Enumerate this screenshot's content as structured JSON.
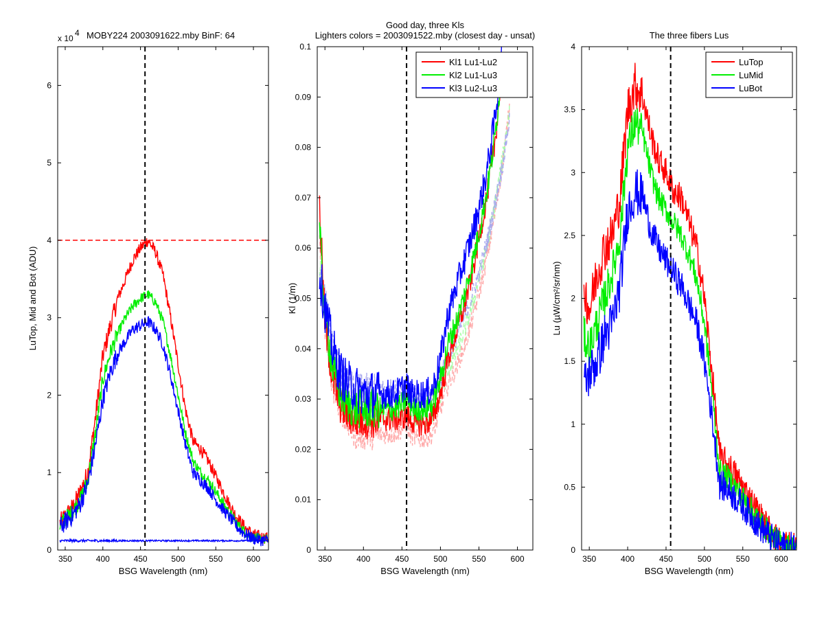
{
  "chart_data": [
    {
      "type": "line",
      "title": "MOBY224  2003091622.mby BinF: 64",
      "exponent_label": "x 10",
      "exponent_power": "4",
      "xlabel": "BSG Wavelength (nm)",
      "ylabel": "LuTop, Mid and Bot (ADU)",
      "xlim": [
        340,
        620
      ],
      "ylim": [
        0,
        6.5
      ],
      "xticks": [
        350,
        400,
        450,
        500,
        550,
        600
      ],
      "yticks": [
        0,
        1,
        2,
        3,
        4,
        5,
        6
      ],
      "vline": {
        "x": 456,
        "color": "#000000",
        "style": "dashed"
      },
      "hline": {
        "y": 4,
        "color": "#ff0000",
        "style": "dashed"
      },
      "series": [
        {
          "color": "#ff0000",
          "noise": 0.08,
          "x": [
            343,
            360,
            370,
            380,
            390,
            400,
            410,
            420,
            430,
            440,
            450,
            460,
            470,
            480,
            490,
            500,
            510,
            520,
            530,
            540,
            550,
            560,
            570,
            580,
            590,
            600,
            610,
            620
          ],
          "y": [
            0.35,
            0.55,
            0.75,
            1.0,
            1.7,
            2.5,
            2.9,
            3.25,
            3.5,
            3.75,
            3.9,
            4.0,
            3.85,
            3.55,
            3.0,
            2.4,
            1.8,
            1.4,
            1.3,
            1.15,
            0.95,
            0.75,
            0.55,
            0.4,
            0.28,
            0.2,
            0.17,
            0.15
          ]
        },
        {
          "color": "#00ee00",
          "noise": 0.07,
          "x": [
            343,
            360,
            370,
            380,
            390,
            400,
            410,
            420,
            430,
            440,
            450,
            460,
            470,
            480,
            490,
            500,
            510,
            520,
            530,
            540,
            550,
            560,
            570,
            580,
            590,
            600,
            610,
            620
          ],
          "y": [
            0.33,
            0.5,
            0.65,
            0.9,
            1.5,
            2.2,
            2.55,
            2.8,
            3.0,
            3.15,
            3.25,
            3.3,
            3.2,
            2.95,
            2.5,
            2.0,
            1.5,
            1.15,
            1.0,
            0.9,
            0.75,
            0.6,
            0.45,
            0.32,
            0.22,
            0.16,
            0.14,
            0.13
          ]
        },
        {
          "color": "#0000ff",
          "noise": 0.08,
          "x": [
            343,
            360,
            370,
            380,
            390,
            400,
            410,
            420,
            430,
            440,
            450,
            460,
            470,
            480,
            490,
            500,
            510,
            520,
            530,
            540,
            550,
            560,
            570,
            580,
            590,
            600,
            610,
            620
          ],
          "y": [
            0.3,
            0.45,
            0.6,
            0.85,
            1.35,
            1.95,
            2.3,
            2.55,
            2.7,
            2.85,
            2.9,
            2.95,
            2.85,
            2.65,
            2.25,
            1.8,
            1.35,
            1.0,
            0.9,
            0.8,
            0.65,
            0.52,
            0.4,
            0.28,
            0.2,
            0.15,
            0.13,
            0.12
          ]
        },
        {
          "color": "#0000ff",
          "noise": 0.01,
          "x": [
            343,
            620
          ],
          "y": [
            0.12,
            0.12
          ]
        }
      ]
    },
    {
      "type": "line",
      "title": "Good day, three Kls",
      "subtitle": "Lighters colors = 2003091522.mby (closest day - unsat)",
      "xlabel": "BSG Wavelength (nm)",
      "ylabel": "Kl (1/m)",
      "xlim": [
        340,
        620
      ],
      "ylim": [
        0,
        0.1
      ],
      "xticks": [
        350,
        400,
        450,
        500,
        550,
        600
      ],
      "yticks": [
        0,
        0.01,
        0.02,
        0.03,
        0.04,
        0.05,
        0.06,
        0.07,
        0.08,
        0.09,
        0.1
      ],
      "vline": {
        "x": 456,
        "color": "#000000",
        "style": "dashed"
      },
      "legend": {
        "location": "top-right",
        "entries": [
          "Kl1 Lu1-Lu2",
          "Kl2 Lu1-Lu3",
          "Kl3 Lu2-Lu3"
        ],
        "colors": [
          "#ff0000",
          "#00ee00",
          "#0000ff"
        ]
      },
      "series": [
        {
          "name": "Kl1 Lu1-Lu2",
          "color": "#ffaaaa",
          "dashed": true,
          "noise": 0.002,
          "x": [
            343,
            350,
            360,
            370,
            380,
            390,
            400,
            410,
            420,
            430,
            440,
            450,
            456,
            460,
            470,
            480,
            490,
            500,
            510,
            520,
            530,
            540,
            550,
            560,
            570,
            580,
            590
          ],
          "y": [
            0.06,
            0.045,
            0.033,
            0.028,
            0.025,
            0.023,
            0.023,
            0.023,
            0.023,
            0.023,
            0.023,
            0.024,
            0.025,
            0.023,
            0.022,
            0.022,
            0.023,
            0.028,
            0.033,
            0.036,
            0.04,
            0.045,
            0.051,
            0.058,
            0.066,
            0.076,
            0.088
          ]
        },
        {
          "name": "Kl2 Lu1-Lu3",
          "color": "#aaffaa",
          "dashed": true,
          "noise": 0.002,
          "x": [
            343,
            350,
            360,
            370,
            380,
            390,
            400,
            410,
            420,
            430,
            440,
            450,
            456,
            460,
            470,
            480,
            490,
            500,
            510,
            520,
            530,
            540,
            550,
            560,
            570,
            580,
            590
          ],
          "y": [
            0.058,
            0.047,
            0.036,
            0.031,
            0.028,
            0.027,
            0.027,
            0.027,
            0.027,
            0.027,
            0.027,
            0.027,
            0.028,
            0.027,
            0.026,
            0.026,
            0.027,
            0.031,
            0.036,
            0.039,
            0.043,
            0.048,
            0.054,
            0.06,
            0.068,
            0.077,
            0.088
          ]
        },
        {
          "name": "Kl3 Lu2-Lu3",
          "color": "#aaaaee",
          "dashed": true,
          "noise": 0.002,
          "x": [
            343,
            350,
            360,
            370,
            380,
            390,
            400,
            410,
            420,
            430,
            440,
            450,
            456,
            460,
            470,
            480,
            490,
            500,
            510,
            520,
            530,
            540,
            550,
            560,
            570,
            580,
            590
          ],
          "y": [
            0.056,
            0.05,
            0.04,
            0.035,
            0.033,
            0.032,
            0.032,
            0.032,
            0.032,
            0.032,
            0.032,
            0.032,
            0.032,
            0.031,
            0.03,
            0.03,
            0.031,
            0.034,
            0.039,
            0.042,
            0.046,
            0.05,
            0.055,
            0.061,
            0.068,
            0.076,
            0.086
          ]
        },
        {
          "name": "Kl1 Lu1-Lu2",
          "color": "#ff0000",
          "noise": 0.0025,
          "x": [
            343,
            350,
            360,
            370,
            380,
            390,
            400,
            410,
            420,
            430,
            440,
            450,
            456,
            460,
            470,
            480,
            490,
            500,
            510,
            520,
            530,
            540,
            550,
            560,
            570,
            580
          ],
          "y": [
            0.068,
            0.045,
            0.034,
            0.029,
            0.027,
            0.026,
            0.026,
            0.026,
            0.026,
            0.026,
            0.026,
            0.026,
            0.027,
            0.026,
            0.025,
            0.025,
            0.026,
            0.031,
            0.038,
            0.043,
            0.048,
            0.054,
            0.062,
            0.07,
            0.08,
            0.095
          ]
        },
        {
          "name": "Kl2 Lu1-Lu3",
          "color": "#00ee00",
          "noise": 0.0025,
          "x": [
            343,
            350,
            360,
            370,
            380,
            390,
            400,
            410,
            420,
            430,
            440,
            450,
            456,
            460,
            470,
            480,
            490,
            500,
            510,
            520,
            530,
            540,
            550,
            560,
            570,
            580
          ],
          "y": [
            0.063,
            0.047,
            0.036,
            0.031,
            0.029,
            0.028,
            0.028,
            0.028,
            0.028,
            0.028,
            0.028,
            0.029,
            0.03,
            0.029,
            0.028,
            0.028,
            0.029,
            0.034,
            0.041,
            0.045,
            0.05,
            0.056,
            0.063,
            0.071,
            0.081,
            0.096
          ]
        },
        {
          "name": "Kl3 Lu2-Lu3",
          "color": "#0000ff",
          "noise": 0.003,
          "x": [
            343,
            350,
            360,
            370,
            380,
            390,
            400,
            410,
            420,
            430,
            440,
            450,
            456,
            460,
            470,
            480,
            490,
            500,
            510,
            520,
            530,
            540,
            550,
            560,
            570,
            580
          ],
          "y": [
            0.055,
            0.048,
            0.04,
            0.035,
            0.033,
            0.032,
            0.031,
            0.031,
            0.031,
            0.031,
            0.031,
            0.032,
            0.033,
            0.031,
            0.031,
            0.031,
            0.032,
            0.038,
            0.047,
            0.052,
            0.057,
            0.062,
            0.068,
            0.075,
            0.085,
            0.098
          ]
        }
      ]
    },
    {
      "type": "line",
      "title": "The three fibers Lus",
      "xlabel": "BSG Wavelength (nm)",
      "ylabel": "Lu (µW/cm²/sr/nm)",
      "xlim": [
        340,
        620
      ],
      "ylim": [
        0,
        4
      ],
      "xticks": [
        350,
        400,
        450,
        500,
        550,
        600
      ],
      "yticks": [
        0,
        0.5,
        1,
        1.5,
        2,
        2.5,
        3,
        3.5,
        4
      ],
      "vline": {
        "x": 456,
        "color": "#000000",
        "style": "dashed"
      },
      "legend": {
        "location": "top-right",
        "entries": [
          "LuTop",
          "LuMid",
          "LuBot"
        ],
        "colors": [
          "#ff0000",
          "#00ee00",
          "#0000ff"
        ]
      },
      "series": [
        {
          "name": "LuTop",
          "color": "#ff0000",
          "noise": 0.12,
          "x": [
            343,
            350,
            360,
            370,
            380,
            390,
            400,
            410,
            420,
            430,
            440,
            450,
            460,
            470,
            480,
            490,
            500,
            510,
            520,
            530,
            540,
            550,
            560,
            570,
            580,
            590,
            600,
            610,
            620
          ],
          "y": [
            2.1,
            1.9,
            2.2,
            2.4,
            2.5,
            2.8,
            3.5,
            3.7,
            3.6,
            3.3,
            3.1,
            3.0,
            2.85,
            2.8,
            2.6,
            2.4,
            2.0,
            1.4,
            0.75,
            0.68,
            0.6,
            0.5,
            0.4,
            0.3,
            0.2,
            0.12,
            0.06,
            0.04,
            0.03
          ]
        },
        {
          "name": "LuMid",
          "color": "#00ee00",
          "noise": 0.1,
          "x": [
            343,
            350,
            360,
            370,
            380,
            390,
            400,
            410,
            420,
            430,
            440,
            450,
            460,
            470,
            480,
            490,
            500,
            510,
            520,
            530,
            540,
            550,
            560,
            570,
            580,
            590,
            600,
            610,
            620
          ],
          "y": [
            1.7,
            1.6,
            1.8,
            2.0,
            2.2,
            2.5,
            3.2,
            3.4,
            3.3,
            3.0,
            2.8,
            2.7,
            2.6,
            2.5,
            2.35,
            2.15,
            1.8,
            1.25,
            0.62,
            0.58,
            0.5,
            0.42,
            0.33,
            0.25,
            0.17,
            0.1,
            0.05,
            0.03,
            0.03
          ]
        },
        {
          "name": "LuBot",
          "color": "#0000ff",
          "noise": 0.12,
          "x": [
            343,
            350,
            360,
            370,
            380,
            390,
            400,
            410,
            420,
            430,
            440,
            450,
            460,
            470,
            480,
            490,
            500,
            510,
            520,
            530,
            540,
            550,
            560,
            570,
            580,
            590,
            600,
            610,
            620
          ],
          "y": [
            1.3,
            1.4,
            1.5,
            1.7,
            1.8,
            2.1,
            2.7,
            2.85,
            2.8,
            2.55,
            2.4,
            2.3,
            2.2,
            2.1,
            1.95,
            1.8,
            1.5,
            1.05,
            0.52,
            0.48,
            0.42,
            0.35,
            0.28,
            0.2,
            0.14,
            0.08,
            0.04,
            0.03,
            0.02
          ]
        }
      ]
    }
  ]
}
